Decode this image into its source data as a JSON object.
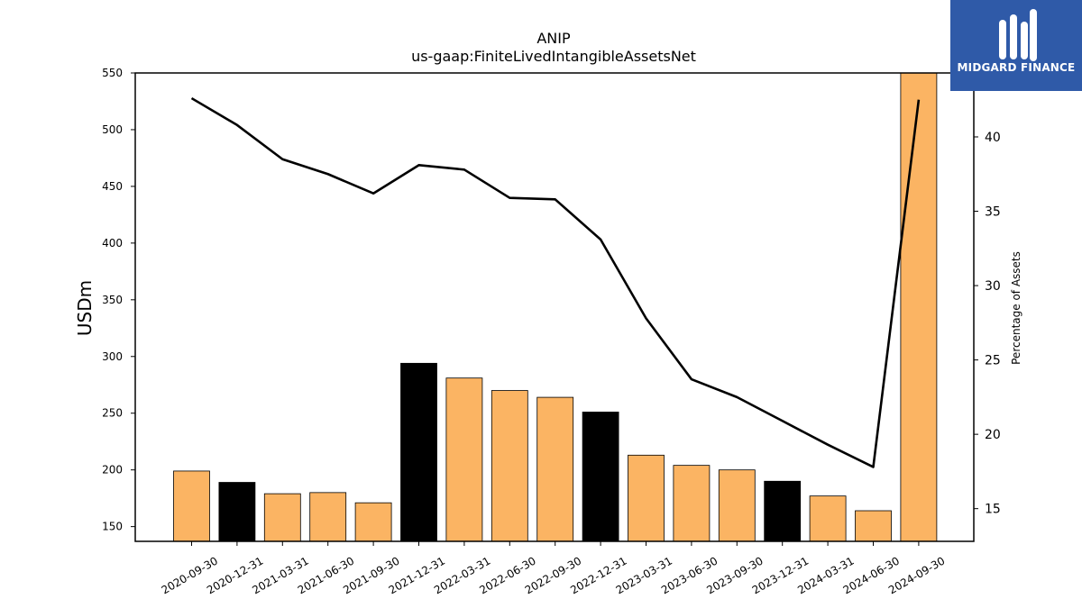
{
  "chart_data": {
    "type": "bar",
    "title": "ANIP",
    "subtitle": "us-gaap:FiniteLivedIntangibleAssetsNet",
    "ylabel": "USDm",
    "y2label": "Percentage of Assets",
    "categories": [
      "2020-09-30",
      "2020-12-31",
      "2021-03-31",
      "2021-06-30",
      "2021-09-30",
      "2021-12-31",
      "2022-03-31",
      "2022-06-30",
      "2022-09-30",
      "2022-12-31",
      "2023-03-31",
      "2023-06-30",
      "2023-09-30",
      "2023-12-31",
      "2024-03-31",
      "2024-06-30",
      "2024-09-30"
    ],
    "series": [
      {
        "type": "bar",
        "values": [
          199,
          189,
          179,
          180,
          171,
          294,
          281,
          270,
          264,
          251,
          213,
          204,
          200,
          190,
          177,
          164,
          552
        ]
      },
      {
        "type": "line",
        "axis": "right",
        "values": [
          42.6,
          40.8,
          38.5,
          37.5,
          36.2,
          38.1,
          37.8,
          35.9,
          35.8,
          33.1,
          27.8,
          23.7,
          22.5,
          20.9,
          19.3,
          17.8,
          42.5
        ]
      }
    ],
    "bar_colors": [
      "#fbb463",
      "#000000",
      "#fbb463",
      "#fbb463",
      "#fbb463",
      "#000000",
      "#fbb463",
      "#fbb463",
      "#fbb463",
      "#000000",
      "#fbb463",
      "#fbb463",
      "#fbb463",
      "#000000",
      "#fbb463",
      "#fbb463",
      "#fbb463"
    ],
    "ylim": [
      137,
      550
    ],
    "y2lim": [
      12.8,
      44.3
    ],
    "yticks": [
      150,
      200,
      250,
      300,
      350,
      400,
      450,
      500,
      550
    ],
    "y2ticks": [
      15,
      20,
      25,
      30,
      35,
      40
    ],
    "grid": false,
    "legend": "none"
  },
  "logo": {
    "text": "MIDGARD FINANCE",
    "background": "#2f5aa8"
  }
}
